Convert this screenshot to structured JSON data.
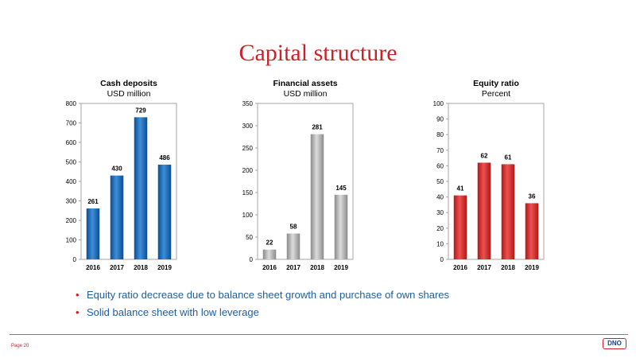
{
  "slide": {
    "title": "Capital structure",
    "page_label": "Page 20",
    "logo_text": "DNO",
    "bullets": [
      "Equity ratio decrease due to balance sheet growth and purchase of own shares",
      "Solid balance sheet with low leverage"
    ],
    "bullet_marker": "•"
  },
  "chart_data": [
    {
      "type": "bar",
      "title": "Cash deposits",
      "subtitle": "USD million",
      "categories": [
        "2016",
        "2017",
        "2018",
        "2019"
      ],
      "values": [
        261,
        430,
        729,
        486
      ],
      "ylim": [
        0,
        800
      ],
      "yticks": [
        0,
        100,
        200,
        300,
        400,
        500,
        600,
        700,
        800
      ],
      "grid": false,
      "colors": {
        "light": "#3d8fd8",
        "dark": "#0d4d91"
      }
    },
    {
      "type": "bar",
      "title": "Financial assets",
      "subtitle": "USD million",
      "categories": [
        "2016",
        "2017",
        "2018",
        "2019"
      ],
      "values": [
        22,
        58,
        281,
        145
      ],
      "ylim": [
        0,
        350
      ],
      "yticks": [
        0,
        50,
        100,
        150,
        200,
        250,
        300,
        350
      ],
      "grid": false,
      "colors": {
        "light": "#dcdcdc",
        "dark": "#8a8a8a"
      }
    },
    {
      "type": "bar",
      "title": "Equity ratio",
      "subtitle": "Percent",
      "categories": [
        "2016",
        "2017",
        "2018",
        "2019"
      ],
      "values": [
        41,
        62,
        61,
        36
      ],
      "ylim": [
        0,
        100
      ],
      "yticks": [
        0,
        10,
        20,
        30,
        40,
        50,
        60,
        70,
        80,
        90,
        100
      ],
      "grid": false,
      "colors": {
        "light": "#ee5050",
        "dark": "#b01818"
      }
    }
  ]
}
